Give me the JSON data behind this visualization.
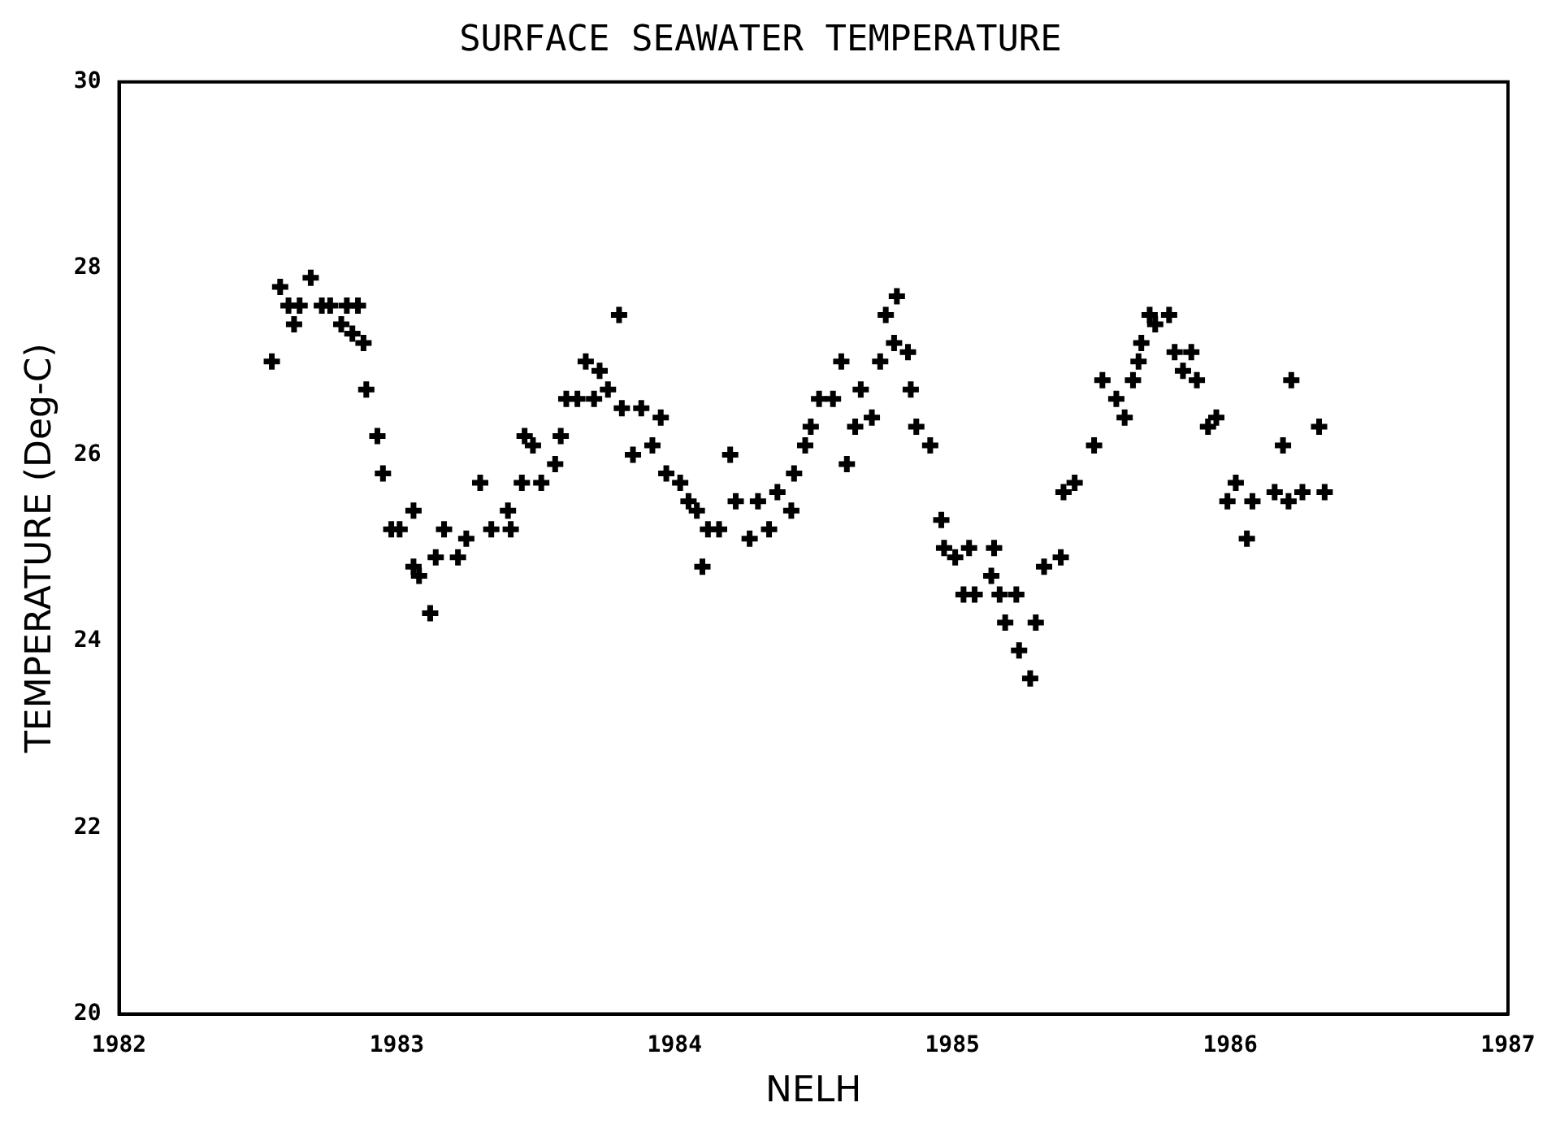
{
  "chart_data": {
    "type": "scatter",
    "title": "SURFACE SEAWATER TEMPERATURE",
    "xlabel": "NELH",
    "ylabel": "TEMPERATURE (Deg-C)",
    "xlim": [
      1982,
      1987
    ],
    "xticks": [
      1982,
      1983,
      1984,
      1985,
      1986,
      1987
    ],
    "ylim": [
      20,
      30
    ],
    "yticks": [
      20,
      22,
      24,
      26,
      28,
      30
    ],
    "grid": false,
    "legend": false,
    "marker": "cross",
    "series": [
      {
        "color": "#000000",
        "x": [
          1982.55,
          1982.58,
          1982.61,
          1982.63,
          1982.65,
          1982.69,
          1982.73,
          1982.76,
          1982.8,
          1982.82,
          1982.84,
          1982.86,
          1982.88,
          1982.89,
          1982.93,
          1982.95,
          1982.98,
          1983.01,
          1983.06,
          1983.06,
          1983.08,
          1983.12,
          1983.14,
          1983.17,
          1983.22,
          1983.25,
          1983.3,
          1983.34,
          1983.4,
          1983.41,
          1983.45,
          1983.46,
          1983.49,
          1983.52,
          1983.57,
          1983.59,
          1983.61,
          1983.65,
          1983.68,
          1983.71,
          1983.73,
          1983.76,
          1983.8,
          1983.81,
          1983.85,
          1983.88,
          1983.92,
          1983.95,
          1983.97,
          1984.02,
          1984.05,
          1984.08,
          1984.1,
          1984.12,
          1984.16,
          1984.2,
          1984.22,
          1984.27,
          1984.3,
          1984.34,
          1984.37,
          1984.42,
          1984.43,
          1984.47,
          1984.49,
          1984.52,
          1984.57,
          1984.6,
          1984.62,
          1984.65,
          1984.67,
          1984.71,
          1984.74,
          1984.76,
          1984.79,
          1984.8,
          1984.84,
          1984.85,
          1984.87,
          1984.92,
          1984.96,
          1984.97,
          1985.01,
          1985.04,
          1985.06,
          1985.08,
          1985.14,
          1985.15,
          1985.17,
          1985.19,
          1985.23,
          1985.24,
          1985.28,
          1985.3,
          1985.33,
          1985.39,
          1985.4,
          1985.44,
          1985.51,
          1985.54,
          1985.59,
          1985.62,
          1985.65,
          1985.67,
          1985.68,
          1985.71,
          1985.73,
          1985.78,
          1985.8,
          1985.83,
          1985.86,
          1985.88,
          1985.92,
          1985.95,
          1985.99,
          1986.02,
          1986.06,
          1986.08,
          1986.16,
          1986.19,
          1986.21,
          1986.22,
          1986.26,
          1986.32,
          1986.34
        ],
        "values": [
          27.0,
          27.8,
          27.6,
          27.4,
          27.6,
          27.9,
          27.6,
          27.6,
          27.4,
          27.6,
          27.3,
          27.6,
          27.2,
          26.7,
          26.2,
          25.8,
          25.2,
          25.2,
          25.4,
          24.8,
          24.7,
          24.3,
          24.9,
          25.2,
          24.9,
          25.1,
          25.7,
          25.2,
          25.4,
          25.2,
          25.7,
          26.2,
          26.1,
          25.7,
          25.9,
          26.2,
          26.6,
          26.6,
          27.0,
          26.6,
          26.9,
          26.7,
          27.5,
          26.5,
          26.0,
          26.5,
          26.1,
          26.4,
          25.8,
          25.7,
          25.5,
          25.4,
          24.8,
          25.2,
          25.2,
          26.0,
          25.5,
          25.1,
          25.5,
          25.2,
          25.6,
          25.4,
          25.8,
          26.1,
          26.3,
          26.6,
          26.6,
          27.0,
          25.9,
          26.3,
          26.7,
          26.4,
          27.0,
          27.5,
          27.2,
          27.7,
          27.1,
          26.7,
          26.3,
          26.1,
          25.3,
          25.0,
          24.9,
          24.5,
          25.0,
          24.5,
          24.7,
          25.0,
          24.5,
          24.2,
          24.5,
          23.9,
          23.6,
          24.2,
          24.8,
          24.9,
          25.6,
          25.7,
          26.1,
          26.8,
          26.6,
          26.4,
          26.8,
          27.0,
          27.2,
          27.5,
          27.4,
          27.5,
          27.1,
          26.9,
          27.1,
          26.8,
          26.3,
          26.4,
          25.5,
          25.7,
          25.1,
          25.5,
          25.6,
          26.1,
          25.5,
          26.8,
          25.6,
          26.3,
          25.6
        ]
      }
    ]
  }
}
